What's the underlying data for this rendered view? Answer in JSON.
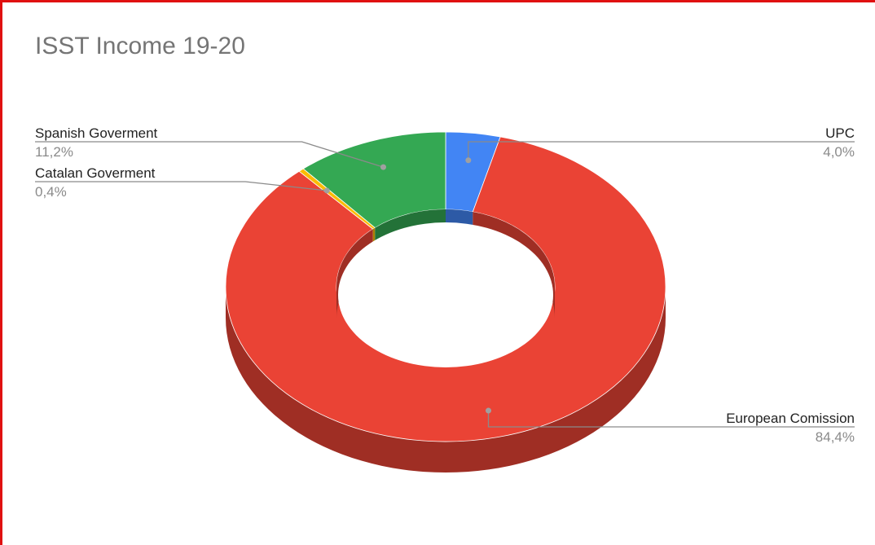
{
  "chart_data": {
    "type": "pie",
    "style": "3d-donut",
    "title": "ISST Income 19-20",
    "slices": [
      {
        "label": "UPC",
        "value": 4.0,
        "value_label": "4,0%",
        "color": "#4285f4"
      },
      {
        "label": "European Comission",
        "value": 84.4,
        "value_label": "84,4%",
        "color": "#ea4335"
      },
      {
        "label": "Catalan Goverment",
        "value": 0.4,
        "value_label": "0,4%",
        "color": "#fbbc04"
      },
      {
        "label": "Spanish Goverment",
        "value": 11.2,
        "value_label": "11,2%",
        "color": "#34a853"
      }
    ]
  }
}
